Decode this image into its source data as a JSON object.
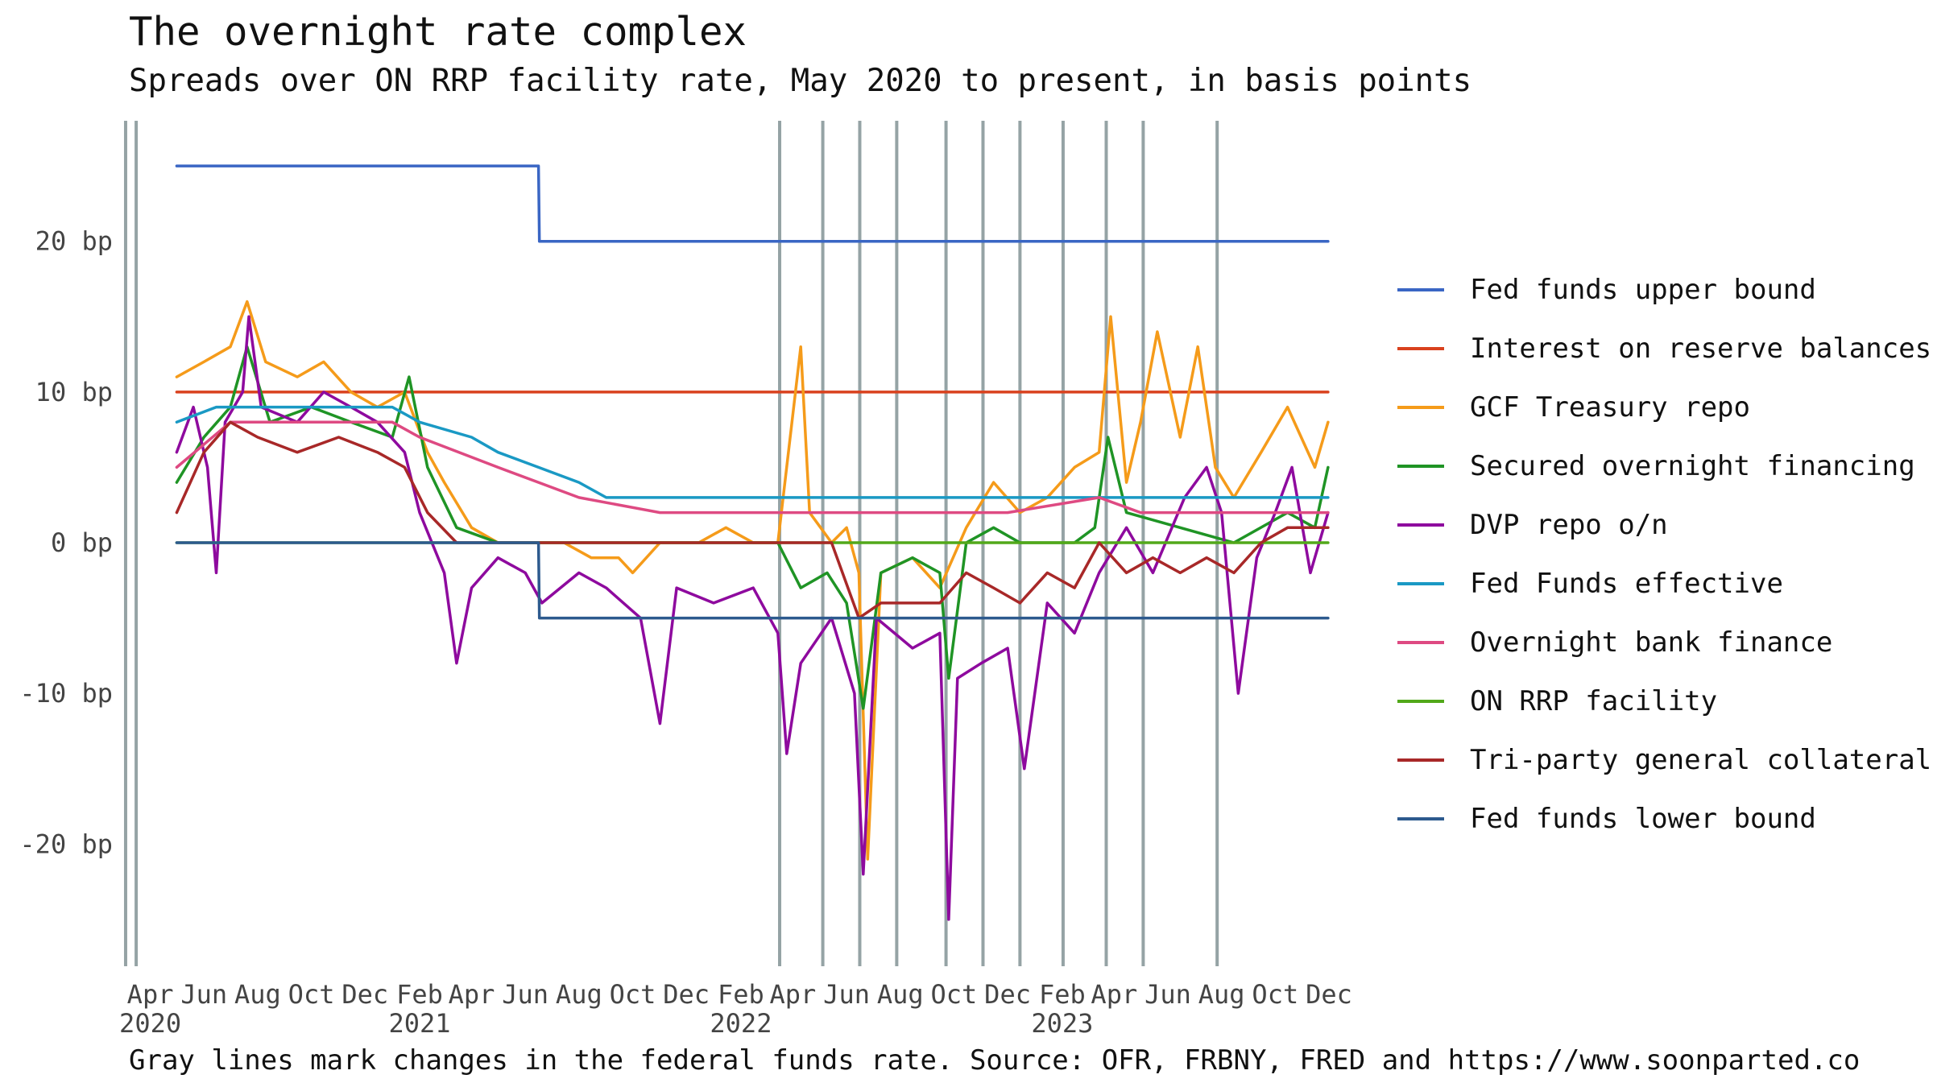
{
  "chart_data": {
    "type": "line",
    "title": "The overnight rate complex",
    "subtitle": "Spreads over ON RRP facility rate, May 2020 to present, in basis points",
    "caption": "Gray lines mark changes in the federal funds rate. Source: OFR, FRBNY, FRED and https://www.soonparted.co",
    "x_range": [
      "2020-03-15",
      "2023-12-01"
    ],
    "ylim": [
      -28,
      28
    ],
    "y_ticks": [
      {
        "value": 20,
        "label": "20 bp"
      },
      {
        "value": 10,
        "label": "10 bp"
      },
      {
        "value": 0,
        "label": "0 bp"
      },
      {
        "value": -10,
        "label": "-10 bp"
      },
      {
        "value": -20,
        "label": "-20 bp"
      }
    ],
    "x_ticks": [
      {
        "date": "2020-04-01",
        "label": "Apr",
        "year": "2020"
      },
      {
        "date": "2020-06-01",
        "label": "Jun"
      },
      {
        "date": "2020-08-01",
        "label": "Aug"
      },
      {
        "date": "2020-10-01",
        "label": "Oct"
      },
      {
        "date": "2020-12-01",
        "label": "Dec"
      },
      {
        "date": "2021-02-01",
        "label": "Feb",
        "year": "2021"
      },
      {
        "date": "2021-04-01",
        "label": "Apr"
      },
      {
        "date": "2021-06-01",
        "label": "Jun"
      },
      {
        "date": "2021-08-01",
        "label": "Aug"
      },
      {
        "date": "2021-10-01",
        "label": "Oct"
      },
      {
        "date": "2021-12-01",
        "label": "Dec"
      },
      {
        "date": "2022-02-01",
        "label": "Feb",
        "year": "2022"
      },
      {
        "date": "2022-04-01",
        "label": "Apr"
      },
      {
        "date": "2022-06-01",
        "label": "Jun"
      },
      {
        "date": "2022-08-01",
        "label": "Aug"
      },
      {
        "date": "2022-10-01",
        "label": "Oct"
      },
      {
        "date": "2022-12-01",
        "label": "Dec"
      },
      {
        "date": "2023-02-01",
        "label": "Feb",
        "year": "2023"
      },
      {
        "date": "2023-04-01",
        "label": "Apr"
      },
      {
        "date": "2023-06-01",
        "label": "Jun"
      },
      {
        "date": "2023-08-01",
        "label": "Aug"
      },
      {
        "date": "2023-10-01",
        "label": "Oct"
      },
      {
        "date": "2023-12-01",
        "label": "Dec"
      }
    ],
    "rate_change_dates": [
      "2020-03-04",
      "2020-03-16",
      "2022-03-17",
      "2022-05-05",
      "2022-06-16",
      "2022-07-28",
      "2022-09-22",
      "2022-11-03",
      "2022-12-15",
      "2023-02-02",
      "2023-03-23",
      "2023-05-04",
      "2023-07-27"
    ],
    "legend": {
      "position": "right"
    },
    "series": [
      {
        "name": "Fed funds upper bound",
        "color": "#3a66c4",
        "points": [
          [
            "2020-05-01",
            25
          ],
          [
            "2021-06-16",
            25
          ],
          [
            "2021-06-17",
            20
          ],
          [
            "2023-11-30",
            20
          ]
        ]
      },
      {
        "name": "Interest on reserve balances",
        "color": "#d9411e",
        "points": [
          [
            "2020-05-01",
            10
          ],
          [
            "2023-11-30",
            10
          ]
        ]
      },
      {
        "name": "GCF Treasury repo",
        "color": "#f59b1a",
        "points": [
          [
            "2020-05-01",
            11
          ],
          [
            "2020-06-01",
            12
          ],
          [
            "2020-07-01",
            13
          ],
          [
            "2020-07-20",
            16
          ],
          [
            "2020-08-10",
            12
          ],
          [
            "2020-09-15",
            11
          ],
          [
            "2020-10-15",
            12
          ],
          [
            "2020-11-15",
            10
          ],
          [
            "2020-12-15",
            9
          ],
          [
            "2021-01-15",
            10
          ],
          [
            "2021-02-10",
            6
          ],
          [
            "2021-03-01",
            4
          ],
          [
            "2021-04-01",
            1
          ],
          [
            "2021-05-01",
            0
          ],
          [
            "2021-06-15",
            0
          ],
          [
            "2021-07-15",
            0
          ],
          [
            "2021-08-15",
            -1
          ],
          [
            "2021-09-15",
            -1
          ],
          [
            "2021-10-01",
            -2
          ],
          [
            "2021-11-01",
            0
          ],
          [
            "2021-12-15",
            0
          ],
          [
            "2022-01-15",
            1
          ],
          [
            "2022-02-15",
            0
          ],
          [
            "2022-03-15",
            0
          ],
          [
            "2022-04-10",
            13
          ],
          [
            "2022-04-20",
            2
          ],
          [
            "2022-05-15",
            0
          ],
          [
            "2022-06-01",
            1
          ],
          [
            "2022-06-15",
            -2
          ],
          [
            "2022-06-25",
            -21
          ],
          [
            "2022-07-10",
            -2
          ],
          [
            "2022-08-15",
            -1
          ],
          [
            "2022-09-15",
            -3
          ],
          [
            "2022-10-15",
            1
          ],
          [
            "2022-11-15",
            4
          ],
          [
            "2022-12-15",
            2
          ],
          [
            "2023-01-15",
            3
          ],
          [
            "2023-02-15",
            5
          ],
          [
            "2023-03-15",
            6
          ],
          [
            "2023-03-28",
            15
          ],
          [
            "2023-04-15",
            4
          ],
          [
            "2023-05-01",
            8
          ],
          [
            "2023-05-20",
            14
          ],
          [
            "2023-06-15",
            7
          ],
          [
            "2023-07-05",
            13
          ],
          [
            "2023-07-25",
            5
          ],
          [
            "2023-08-15",
            3
          ],
          [
            "2023-09-15",
            6
          ],
          [
            "2023-10-15",
            9
          ],
          [
            "2023-11-15",
            5
          ],
          [
            "2023-11-30",
            8
          ]
        ]
      },
      {
        "name": "Secured overnight financing",
        "color": "#1f9425",
        "points": [
          [
            "2020-05-01",
            4
          ],
          [
            "2020-06-01",
            7
          ],
          [
            "2020-07-01",
            9
          ],
          [
            "2020-07-20",
            13
          ],
          [
            "2020-08-15",
            8
          ],
          [
            "2020-10-01",
            9
          ],
          [
            "2020-11-15",
            8
          ],
          [
            "2021-01-01",
            7
          ],
          [
            "2021-01-20",
            11
          ],
          [
            "2021-02-10",
            5
          ],
          [
            "2021-03-15",
            1
          ],
          [
            "2021-05-01",
            0
          ],
          [
            "2021-12-01",
            0
          ],
          [
            "2022-02-15",
            0
          ],
          [
            "2022-03-15",
            0
          ],
          [
            "2022-04-10",
            -3
          ],
          [
            "2022-05-10",
            -2
          ],
          [
            "2022-06-01",
            -4
          ],
          [
            "2022-06-20",
            -11
          ],
          [
            "2022-07-10",
            -2
          ],
          [
            "2022-08-15",
            -1
          ],
          [
            "2022-09-15",
            -2
          ],
          [
            "2022-09-25",
            -9
          ],
          [
            "2022-10-15",
            0
          ],
          [
            "2022-11-15",
            1
          ],
          [
            "2022-12-15",
            0
          ],
          [
            "2023-02-15",
            0
          ],
          [
            "2023-03-10",
            1
          ],
          [
            "2023-03-25",
            7
          ],
          [
            "2023-04-15",
            2
          ],
          [
            "2023-06-15",
            1
          ],
          [
            "2023-08-15",
            0
          ],
          [
            "2023-10-15",
            2
          ],
          [
            "2023-11-15",
            1
          ],
          [
            "2023-11-30",
            5
          ]
        ]
      },
      {
        "name": "DVP repo o/n",
        "color": "#8e0a9e",
        "points": [
          [
            "2020-05-01",
            6
          ],
          [
            "2020-05-20",
            9
          ],
          [
            "2020-06-05",
            5
          ],
          [
            "2020-06-15",
            -2
          ],
          [
            "2020-06-25",
            8
          ],
          [
            "2020-07-15",
            10
          ],
          [
            "2020-07-22",
            15
          ],
          [
            "2020-08-05",
            9
          ],
          [
            "2020-09-15",
            8
          ],
          [
            "2020-10-15",
            10
          ],
          [
            "2020-11-15",
            9
          ],
          [
            "2020-12-15",
            8
          ],
          [
            "2021-01-15",
            6
          ],
          [
            "2021-02-01",
            2
          ],
          [
            "2021-03-01",
            -2
          ],
          [
            "2021-03-15",
            -8
          ],
          [
            "2021-04-01",
            -3
          ],
          [
            "2021-05-01",
            -1
          ],
          [
            "2021-06-01",
            -2
          ],
          [
            "2021-06-20",
            -4
          ],
          [
            "2021-08-01",
            -2
          ],
          [
            "2021-09-01",
            -3
          ],
          [
            "2021-10-10",
            -5
          ],
          [
            "2021-11-01",
            -12
          ],
          [
            "2021-11-20",
            -3
          ],
          [
            "2022-01-01",
            -4
          ],
          [
            "2022-02-15",
            -3
          ],
          [
            "2022-03-15",
            -6
          ],
          [
            "2022-03-25",
            -14
          ],
          [
            "2022-04-10",
            -8
          ],
          [
            "2022-05-15",
            -5
          ],
          [
            "2022-06-10",
            -10
          ],
          [
            "2022-06-20",
            -22
          ],
          [
            "2022-07-05",
            -5
          ],
          [
            "2022-08-15",
            -7
          ],
          [
            "2022-09-15",
            -6
          ],
          [
            "2022-09-25",
            -25
          ],
          [
            "2022-10-05",
            -9
          ],
          [
            "2022-11-01",
            -8
          ],
          [
            "2022-12-01",
            -7
          ],
          [
            "2022-12-20",
            -15
          ],
          [
            "2023-01-15",
            -4
          ],
          [
            "2023-02-15",
            -6
          ],
          [
            "2023-03-15",
            -2
          ],
          [
            "2023-04-15",
            1
          ],
          [
            "2023-05-15",
            -2
          ],
          [
            "2023-06-20",
            3
          ],
          [
            "2023-07-15",
            5
          ],
          [
            "2023-08-01",
            2
          ],
          [
            "2023-08-20",
            -10
          ],
          [
            "2023-09-10",
            -1
          ],
          [
            "2023-10-01",
            2
          ],
          [
            "2023-10-20",
            5
          ],
          [
            "2023-11-10",
            -2
          ],
          [
            "2023-11-30",
            2
          ]
        ]
      },
      {
        "name": "Fed Funds effective",
        "color": "#1a99c4",
        "points": [
          [
            "2020-05-01",
            8
          ],
          [
            "2020-06-15",
            9
          ],
          [
            "2020-08-01",
            9
          ],
          [
            "2021-01-01",
            9
          ],
          [
            "2021-02-01",
            8
          ],
          [
            "2021-04-01",
            7
          ],
          [
            "2021-05-01",
            6
          ],
          [
            "2021-06-16",
            5
          ],
          [
            "2021-08-01",
            4
          ],
          [
            "2021-09-01",
            3
          ],
          [
            "2023-11-30",
            3
          ]
        ]
      },
      {
        "name": "Overnight bank finance",
        "color": "#de4a82",
        "points": [
          [
            "2020-05-01",
            5
          ],
          [
            "2020-07-01",
            8
          ],
          [
            "2021-01-01",
            8
          ],
          [
            "2021-02-01",
            7
          ],
          [
            "2021-05-01",
            5
          ],
          [
            "2021-06-16",
            4
          ],
          [
            "2021-08-01",
            3
          ],
          [
            "2021-11-01",
            2
          ],
          [
            "2022-12-01",
            2
          ],
          [
            "2023-03-15",
            3
          ],
          [
            "2023-05-01",
            2
          ],
          [
            "2023-11-30",
            2
          ]
        ]
      },
      {
        "name": "ON RRP facility",
        "color": "#52a81a",
        "points": [
          [
            "2020-05-01",
            0
          ],
          [
            "2023-11-30",
            0
          ]
        ]
      },
      {
        "name": "Tri-party general collateral",
        "color": "#a82828",
        "points": [
          [
            "2020-05-01",
            2
          ],
          [
            "2020-06-01",
            6
          ],
          [
            "2020-07-01",
            8
          ],
          [
            "2020-08-01",
            7
          ],
          [
            "2020-09-15",
            6
          ],
          [
            "2020-11-01",
            7
          ],
          [
            "2020-12-15",
            6
          ],
          [
            "2021-01-15",
            5
          ],
          [
            "2021-02-10",
            2
          ],
          [
            "2021-03-15",
            0
          ],
          [
            "2021-05-01",
            0
          ],
          [
            "2022-03-15",
            0
          ],
          [
            "2022-05-15",
            0
          ],
          [
            "2022-06-15",
            -5
          ],
          [
            "2022-07-10",
            -4
          ],
          [
            "2022-09-15",
            -4
          ],
          [
            "2022-10-15",
            -2
          ],
          [
            "2022-11-15",
            -3
          ],
          [
            "2022-12-15",
            -4
          ],
          [
            "2023-01-15",
            -2
          ],
          [
            "2023-02-15",
            -3
          ],
          [
            "2023-03-15",
            0
          ],
          [
            "2023-04-15",
            -2
          ],
          [
            "2023-05-15",
            -1
          ],
          [
            "2023-06-15",
            -2
          ],
          [
            "2023-07-15",
            -1
          ],
          [
            "2023-08-15",
            -2
          ],
          [
            "2023-09-15",
            0
          ],
          [
            "2023-10-15",
            1
          ],
          [
            "2023-11-30",
            1
          ]
        ]
      },
      {
        "name": "Fed funds lower bound",
        "color": "#2d5a8e",
        "points": [
          [
            "2020-05-01",
            0
          ],
          [
            "2021-06-16",
            0
          ],
          [
            "2021-06-17",
            -5
          ],
          [
            "2023-11-30",
            -5
          ]
        ]
      }
    ]
  }
}
